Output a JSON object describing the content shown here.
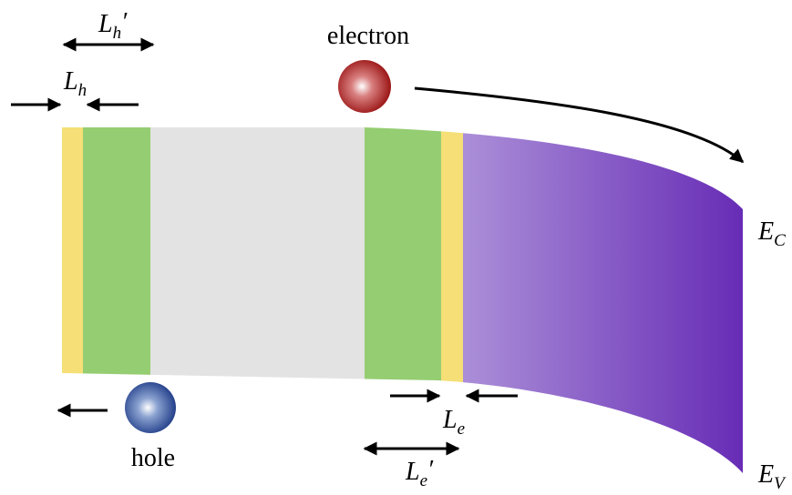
{
  "diagram": {
    "widths": [
      {
        "symbol": "L",
        "subscript": "h",
        "prime": "′"
      },
      {
        "symbol": "L",
        "subscript": "h"
      },
      {
        "symbol": "L",
        "subscript": "e"
      },
      {
        "symbol": "L",
        "subscript": "e",
        "prime": "′"
      }
    ],
    "particles": [
      {
        "label": "electron"
      },
      {
        "label": "hole"
      }
    ],
    "band_edges": [
      {
        "symbol": "E",
        "subscript": "C"
      },
      {
        "symbol": "E",
        "subscript": "V"
      }
    ]
  }
}
